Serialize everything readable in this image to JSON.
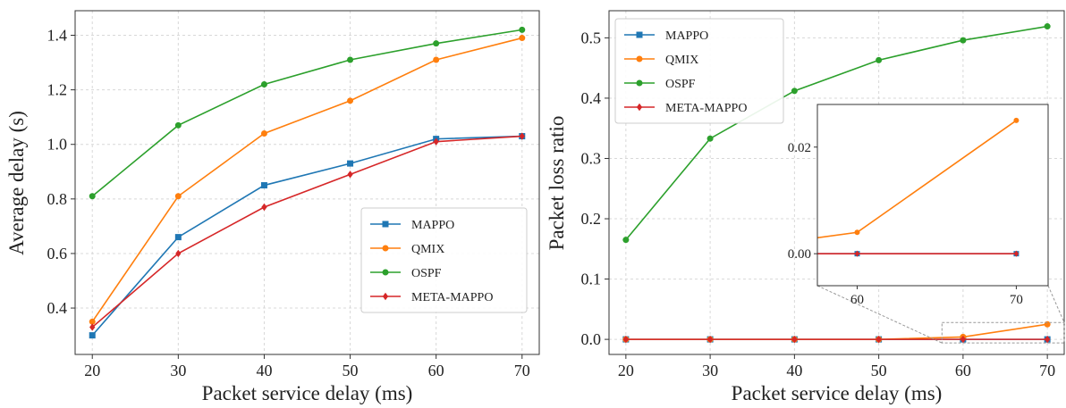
{
  "chart_data": [
    {
      "type": "line",
      "x": [
        20,
        30,
        40,
        50,
        60,
        70
      ],
      "xlabel": "Packet service delay (ms)",
      "ylabel": "Average delay (s)",
      "xlim": [
        18,
        72
      ],
      "ylim": [
        0.23,
        1.49
      ],
      "xticks": [
        20,
        30,
        40,
        50,
        60,
        70
      ],
      "yticks": [
        0.4,
        0.6,
        0.8,
        1.0,
        1.2,
        1.4
      ],
      "ytick_format": 1,
      "grid": true,
      "legend_position": "lower-right",
      "series": [
        {
          "name": "MAPPO",
          "color": "#1f77b4",
          "marker": "square",
          "values": [
            0.3,
            0.66,
            0.85,
            0.93,
            1.02,
            1.03
          ]
        },
        {
          "name": "QMIX",
          "color": "#ff7f0e",
          "marker": "circle",
          "values": [
            0.35,
            0.81,
            1.04,
            1.16,
            1.31,
            1.39
          ]
        },
        {
          "name": "OSPF",
          "color": "#2ca02c",
          "marker": "circle",
          "values": [
            0.81,
            1.07,
            1.22,
            1.31,
            1.37,
            1.42
          ]
        },
        {
          "name": "META-MAPPO",
          "color": "#d62728",
          "marker": "diamond",
          "values": [
            0.33,
            0.6,
            0.77,
            0.89,
            1.01,
            1.03
          ]
        }
      ]
    },
    {
      "type": "line",
      "x": [
        20,
        30,
        40,
        50,
        60,
        70
      ],
      "xlabel": "Packet service delay (ms)",
      "ylabel": "Packet loss ratio",
      "xlim": [
        18,
        72
      ],
      "ylim": [
        -0.025,
        0.545
      ],
      "xticks": [
        20,
        30,
        40,
        50,
        60,
        70
      ],
      "yticks": [
        0.0,
        0.1,
        0.2,
        0.3,
        0.4,
        0.5
      ],
      "ytick_format": 1,
      "grid": true,
      "legend_position": "upper-left",
      "series": [
        {
          "name": "MAPPO",
          "color": "#1f77b4",
          "marker": "square",
          "values": [
            0.0,
            0.0,
            0.0,
            0.0,
            0.0,
            0.0
          ]
        },
        {
          "name": "QMIX",
          "color": "#ff7f0e",
          "marker": "circle",
          "values": [
            0.0,
            0.0,
            0.0,
            0.0,
            0.004,
            0.025
          ]
        },
        {
          "name": "OSPF",
          "color": "#2ca02c",
          "marker": "circle",
          "values": [
            0.165,
            0.333,
            0.412,
            0.463,
            0.496,
            0.519
          ]
        },
        {
          "name": "META-MAPPO",
          "color": "#d62728",
          "marker": "diamond",
          "values": [
            0.0,
            0.0,
            0.0,
            0.0,
            0.0,
            0.0
          ]
        }
      ],
      "inset": {
        "xlim": [
          57.5,
          72
        ],
        "ylim": [
          -0.006,
          0.028
        ],
        "xticks": [
          60,
          70
        ],
        "yticks": [
          0.0,
          0.02
        ],
        "ytick_format": 2
      }
    }
  ]
}
